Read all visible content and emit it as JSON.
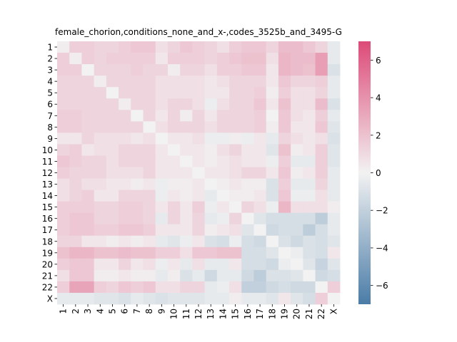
{
  "chart_data": {
    "type": "heatmap",
    "title": "female_chorion,conditions_none_and_x-,codes_3525b_and_3495-G",
    "xlabel": "",
    "ylabel": "",
    "x_categories": [
      "1",
      "2",
      "3",
      "4",
      "5",
      "6",
      "7",
      "8",
      "9",
      "10",
      "11",
      "12",
      "13",
      "14",
      "15",
      "16",
      "17",
      "18",
      "19",
      "20",
      "21",
      "22",
      "X"
    ],
    "y_categories": [
      "1",
      "2",
      "3",
      "4",
      "5",
      "6",
      "7",
      "8",
      "9",
      "10",
      "11",
      "12",
      "13",
      "14",
      "15",
      "16",
      "17",
      "18",
      "19",
      "20",
      "21",
      "22",
      "X"
    ],
    "colorbar": {
      "vmin": -7,
      "vmax": 7,
      "ticks": [
        -6,
        -4,
        -2,
        0,
        2,
        4,
        6
      ],
      "low_color": "#4a7ca7",
      "mid_color": "#f2f2f2",
      "high_color": "#dd4a78"
    },
    "values": [
      [
        0.2,
        1.5,
        1.5,
        1.2,
        1.2,
        1.5,
        1.8,
        1.8,
        0.8,
        1.2,
        1.8,
        1.5,
        1.2,
        0.8,
        1.5,
        1.8,
        1.8,
        1.2,
        2.2,
        2.2,
        1.8,
        1.2,
        -0.5
      ],
      [
        1.5,
        0.2,
        1.5,
        1.2,
        1.5,
        1.5,
        1.5,
        1.5,
        0.5,
        1.5,
        1.5,
        1.5,
        1.2,
        1.5,
        1.8,
        2.0,
        2.0,
        0.8,
        2.5,
        2.2,
        2.2,
        3.5,
        -0.5
      ],
      [
        1.5,
        1.5,
        0.0,
        1.2,
        1.2,
        1.2,
        1.5,
        1.2,
        1.2,
        0.2,
        1.2,
        1.2,
        0.8,
        1.5,
        1.5,
        1.8,
        1.8,
        0.5,
        2.5,
        2.2,
        2.0,
        3.5,
        -1.0
      ],
      [
        1.2,
        1.2,
        1.2,
        0.2,
        1.2,
        1.2,
        1.2,
        1.2,
        0.8,
        0.8,
        0.8,
        0.8,
        0.5,
        0.8,
        1.2,
        1.2,
        1.2,
        0.5,
        1.8,
        1.2,
        1.2,
        1.5,
        -0.5
      ],
      [
        1.2,
        1.2,
        1.2,
        1.2,
        0.0,
        1.2,
        1.2,
        1.2,
        0.8,
        0.8,
        0.8,
        0.8,
        0.5,
        0.5,
        1.2,
        1.2,
        1.5,
        0.2,
        1.5,
        0.8,
        0.8,
        1.2,
        -0.5
      ],
      [
        1.2,
        1.2,
        1.2,
        1.2,
        1.2,
        0.2,
        1.2,
        1.2,
        0.8,
        1.2,
        1.2,
        0.8,
        -0.3,
        0.8,
        1.2,
        1.2,
        1.8,
        0.5,
        2.0,
        0.8,
        0.8,
        2.2,
        -1.0
      ],
      [
        1.5,
        1.5,
        1.2,
        1.2,
        1.2,
        1.2,
        0.0,
        1.2,
        0.5,
        1.2,
        0.2,
        1.2,
        0.5,
        1.2,
        1.2,
        1.2,
        1.5,
        0.0,
        1.8,
        0.8,
        0.5,
        1.5,
        -0.5
      ],
      [
        1.5,
        1.5,
        1.2,
        1.2,
        1.2,
        1.2,
        1.2,
        0.0,
        0.8,
        1.2,
        1.2,
        1.2,
        0.8,
        1.2,
        1.2,
        1.2,
        1.5,
        0.2,
        1.8,
        0.5,
        0.5,
        1.8,
        -0.8
      ],
      [
        0.5,
        0.5,
        1.2,
        0.8,
        0.8,
        0.8,
        0.5,
        0.8,
        0.0,
        0.5,
        0.5,
        0.8,
        -0.3,
        -0.3,
        0.2,
        -0.3,
        0.5,
        -0.5,
        1.2,
        0.8,
        0.5,
        0.8,
        -1.0
      ],
      [
        1.2,
        1.5,
        0.5,
        0.8,
        0.8,
        1.2,
        1.2,
        1.2,
        0.5,
        0.0,
        0.5,
        0.5,
        0.2,
        0.8,
        1.2,
        0.5,
        0.5,
        -0.8,
        2.0,
        0.2,
        0.5,
        1.5,
        -0.8
      ],
      [
        1.8,
        1.5,
        1.2,
        1.2,
        0.8,
        1.2,
        1.2,
        1.2,
        0.5,
        0.5,
        0.0,
        0.5,
        0.2,
        0.5,
        0.8,
        0.5,
        0.5,
        -0.3,
        1.5,
        -0.5,
        -0.5,
        1.5,
        -0.8
      ],
      [
        1.5,
        1.2,
        1.2,
        1.2,
        0.8,
        0.8,
        0.8,
        1.2,
        0.5,
        0.5,
        0.5,
        0.0,
        0.5,
        0.5,
        0.8,
        1.2,
        1.2,
        0.5,
        1.8,
        0.2,
        0.5,
        1.5,
        -0.5
      ],
      [
        0.8,
        1.2,
        0.8,
        0.8,
        0.5,
        0.5,
        0.2,
        0.5,
        -0.3,
        0.2,
        0.2,
        0.5,
        0.0,
        0.2,
        0.5,
        0.2,
        0.2,
        -1.0,
        1.5,
        -0.5,
        -0.5,
        1.2,
        -0.5
      ],
      [
        0.8,
        1.2,
        1.5,
        0.5,
        0.5,
        1.2,
        1.2,
        1.2,
        -0.3,
        0.5,
        0.2,
        0.5,
        -0.5,
        0.0,
        0.2,
        0.2,
        0.5,
        -1.0,
        1.8,
        -0.3,
        -0.3,
        0.8,
        -0.5
      ],
      [
        1.5,
        1.5,
        1.5,
        1.2,
        1.2,
        1.5,
        1.5,
        1.2,
        0.5,
        1.2,
        0.5,
        1.5,
        -0.3,
        0.5,
        0.0,
        1.2,
        0.8,
        -0.3,
        2.5,
        0.8,
        0.8,
        0.8,
        0.2
      ],
      [
        1.5,
        1.8,
        1.8,
        1.2,
        1.2,
        1.5,
        1.5,
        1.2,
        -0.5,
        1.2,
        0.5,
        1.2,
        -0.5,
        -0.3,
        1.2,
        0.0,
        -0.8,
        -1.2,
        -1.2,
        -1.2,
        -1.2,
        -2.2,
        -0.5
      ],
      [
        1.5,
        1.8,
        1.8,
        1.5,
        1.5,
        1.8,
        1.8,
        1.5,
        0.5,
        0.5,
        0.5,
        1.2,
        0.2,
        0.5,
        0.8,
        -0.8,
        0.0,
        -1.5,
        -1.2,
        -1.2,
        -2.2,
        -1.2,
        -0.5
      ],
      [
        1.2,
        1.2,
        0.5,
        0.5,
        0.2,
        0.5,
        0.2,
        0.5,
        -0.5,
        -0.8,
        -0.3,
        0.5,
        -1.0,
        -1.2,
        -0.3,
        -1.2,
        -1.5,
        0.0,
        -1.0,
        -1.5,
        -1.0,
        -1.2,
        -0.8
      ],
      [
        2.0,
        2.5,
        2.5,
        2.0,
        2.0,
        2.2,
        2.0,
        2.0,
        1.5,
        1.5,
        0.8,
        1.8,
        1.8,
        2.0,
        2.0,
        -1.2,
        -1.2,
        -0.8,
        0.0,
        -0.3,
        -1.0,
        -1.2,
        0.5
      ],
      [
        1.5,
        1.8,
        1.8,
        0.5,
        0.5,
        1.2,
        0.5,
        0.8,
        -0.3,
        0.5,
        -0.5,
        0.8,
        -0.5,
        -0.5,
        0.5,
        -1.2,
        -1.2,
        -1.5,
        -0.3,
        0.0,
        -0.8,
        -1.8,
        -0.8
      ],
      [
        0.8,
        1.8,
        1.8,
        0.2,
        0.2,
        0.5,
        0.2,
        0.2,
        -0.5,
        0.2,
        -1.0,
        -0.5,
        -1.5,
        -0.5,
        -0.5,
        -1.5,
        -2.2,
        -1.0,
        -1.0,
        -0.8,
        0.0,
        -1.5,
        -1.2
      ],
      [
        1.5,
        3.2,
        3.2,
        1.5,
        1.2,
        1.8,
        1.5,
        1.8,
        0.8,
        0.8,
        1.2,
        1.2,
        -0.5,
        -0.3,
        0.8,
        -2.0,
        -2.0,
        -1.5,
        -1.2,
        -1.5,
        -1.5,
        0.0,
        1.5
      ],
      [
        -0.5,
        -0.5,
        -0.5,
        -0.8,
        -0.8,
        -1.0,
        -0.5,
        -0.8,
        -1.0,
        -0.8,
        -0.8,
        -0.8,
        -0.5,
        -0.5,
        0.2,
        -0.5,
        -0.5,
        -0.8,
        0.5,
        -0.8,
        -1.2,
        1.5,
        0.0
      ]
    ]
  }
}
